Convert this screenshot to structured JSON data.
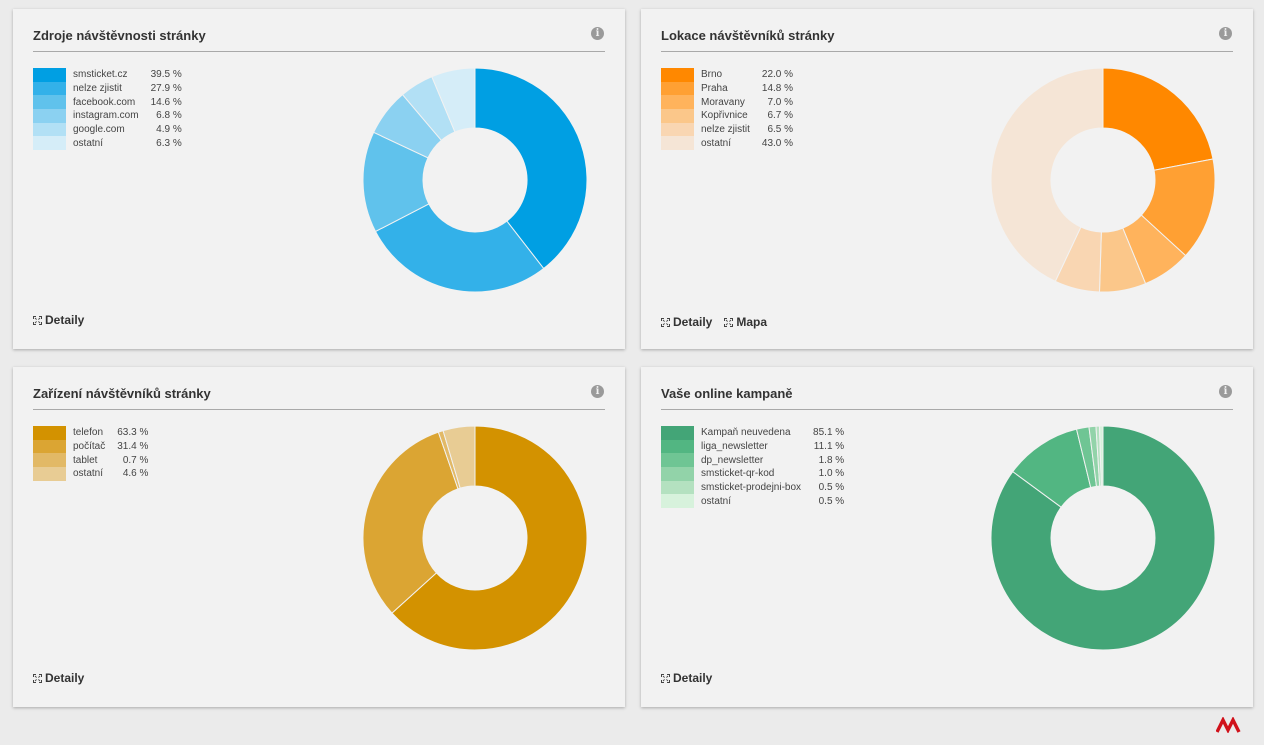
{
  "panels": [
    {
      "title": "Zdroje návštěvnosti stránky",
      "links": [
        "Detaily"
      ],
      "legend": [
        {
          "label": "smsticket.cz",
          "value": "39.5 %"
        },
        {
          "label": "nelze zjistit",
          "value": "27.9 %"
        },
        {
          "label": "facebook.com",
          "value": "14.6 %"
        },
        {
          "label": "instagram.com",
          "value": "6.8 %"
        },
        {
          "label": "google.com",
          "value": "4.9 %"
        },
        {
          "label": "ostatní",
          "value": "6.3 %"
        }
      ]
    },
    {
      "title": "Lokace návštěvníků stránky",
      "links": [
        "Detaily",
        "Mapa"
      ],
      "legend": [
        {
          "label": "Brno",
          "value": "22.0 %"
        },
        {
          "label": "Praha",
          "value": "14.8 %"
        },
        {
          "label": "Moravany",
          "value": "7.0 %"
        },
        {
          "label": "Kopřivnice",
          "value": "6.7 %"
        },
        {
          "label": "nelze zjistit",
          "value": "6.5 %"
        },
        {
          "label": "ostatní",
          "value": "43.0 %"
        }
      ]
    },
    {
      "title": "Zařízení návštěvníků stránky",
      "links": [
        "Detaily"
      ],
      "legend": [
        {
          "label": "telefon",
          "value": "63.3 %"
        },
        {
          "label": "počítač",
          "value": "31.4 %"
        },
        {
          "label": "tablet",
          "value": "0.7 %"
        },
        {
          "label": "ostatní",
          "value": "4.6 %"
        }
      ]
    },
    {
      "title": "Vaše online kampaně",
      "links": [
        "Detaily"
      ],
      "legend": [
        {
          "label": "Kampaň neuvedena",
          "value": "85.1 %"
        },
        {
          "label": "liga_newsletter",
          "value": "11.1 %"
        },
        {
          "label": "dp_newsletter",
          "value": "1.8 %"
        },
        {
          "label": "smsticket-qr-kod",
          "value": "1.0 %"
        },
        {
          "label": "smsticket-prodejni-box",
          "value": "0.5 %"
        },
        {
          "label": "ostatní",
          "value": "0.5 %"
        }
      ]
    }
  ],
  "chart_data": [
    {
      "type": "pie",
      "title": "Zdroje návštěvnosti stránky",
      "categories": [
        "smsticket.cz",
        "nelze zjistit",
        "facebook.com",
        "instagram.com",
        "google.com",
        "ostatní"
      ],
      "values": [
        39.5,
        27.9,
        14.6,
        6.8,
        4.9,
        6.3
      ],
      "colors": [
        "#009fe3",
        "#33b1e9",
        "#60c2ec",
        "#8bd1f1",
        "#b2e0f5",
        "#d5edf8"
      ],
      "legend": "left"
    },
    {
      "type": "pie",
      "title": "Lokace návštěvníků stránky",
      "categories": [
        "Brno",
        "Praha",
        "Moravany",
        "Kopřivnice",
        "nelze zjistit",
        "ostatní"
      ],
      "values": [
        22.0,
        14.8,
        7.0,
        6.7,
        6.5,
        43.0
      ],
      "colors": [
        "#ff8800",
        "#ffa033",
        "#ffb35c",
        "#fbc78a",
        "#f9d6b2",
        "#f5e5d6"
      ],
      "legend": "left"
    },
    {
      "type": "pie",
      "title": "Zařízení návštěvníků stránky",
      "categories": [
        "telefon",
        "počítač",
        "tablet",
        "ostatní"
      ],
      "values": [
        63.3,
        31.4,
        0.7,
        4.6
      ],
      "colors": [
        "#d39200",
        "#dba533",
        "#e2b966",
        "#e8cc94"
      ],
      "legend": "left"
    },
    {
      "type": "pie",
      "title": "Vaše online kampaně",
      "categories": [
        "Kampaň neuvedena",
        "liga_newsletter",
        "dp_newsletter",
        "smsticket-qr-kod",
        "smsticket-prodejni-box",
        "ostatní"
      ],
      "values": [
        85.1,
        11.1,
        1.8,
        1.0,
        0.5,
        0.5
      ],
      "colors": [
        "#43a577",
        "#52b682",
        "#6fc594",
        "#92d3a9",
        "#b4e1c0",
        "#d7f2dc"
      ],
      "legend": "left"
    }
  ]
}
